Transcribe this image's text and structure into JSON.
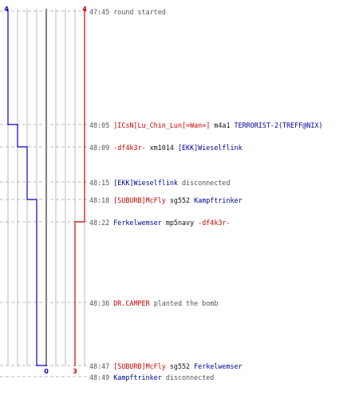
{
  "colors": {
    "team_t": "#cc0000",
    "team_ct": "#0000cc",
    "grid": "#bbbbbb",
    "center": "#555555",
    "dash": "#bbbbbb",
    "text_time": "#555555",
    "text_player_t": "#cc0000",
    "text_player_ct": "#000099"
  },
  "chart_data": {
    "type": "line",
    "series": [
      {
        "team": "ct",
        "start": 4,
        "end": 0,
        "times": [
          "47:45",
          "48:05",
          "48:09",
          "48:18",
          "48:47"
        ],
        "values": [
          4,
          3,
          2,
          1,
          0
        ]
      },
      {
        "team": "t",
        "start": 4,
        "end": 3,
        "times": [
          "47:45",
          "48:22",
          "48:47"
        ],
        "values": [
          4,
          3,
          3
        ]
      }
    ],
    "top_labels": {
      "ct": "4",
      "t": "4"
    },
    "bottom_labels": {
      "ct": "0",
      "t": "3"
    }
  },
  "events": [
    {
      "time": "47:45",
      "parts": [
        {
          "text": "round started",
          "style": "gray"
        }
      ]
    },
    {
      "time": "48:05",
      "parts": [
        {
          "text": "]ICsN[Lu_Chin_Lun[=Wan=]",
          "style": "red"
        },
        {
          "text": " m4a1 ",
          "style": "dark"
        },
        {
          "text": "TERRORIST-2(TREFF@NIX)",
          "style": "blue"
        }
      ]
    },
    {
      "time": "48:09",
      "parts": [
        {
          "text": "-df4k3r-",
          "style": "red"
        },
        {
          "text": " xm1014 ",
          "style": "dark"
        },
        {
          "text": "[EKK]Wieselflink",
          "style": "blue"
        }
      ]
    },
    {
      "time": "48:15",
      "parts": [
        {
          "text": "[EKK]Wieselflink",
          "style": "blue"
        },
        {
          "text": " disconnected",
          "style": "gray"
        }
      ]
    },
    {
      "time": "48:18",
      "parts": [
        {
          "text": "[SUBURB]McFly",
          "style": "red"
        },
        {
          "text": " sg552 ",
          "style": "dark"
        },
        {
          "text": "Kampftrinker",
          "style": "blue"
        }
      ]
    },
    {
      "time": "48:22",
      "parts": [
        {
          "text": "Ferkelwemser",
          "style": "blue"
        },
        {
          "text": " mp5navy ",
          "style": "dark"
        },
        {
          "text": "-df4k3r-",
          "style": "red"
        }
      ]
    },
    {
      "time": "48:36",
      "parts": [
        {
          "text": "DR.CAMPER",
          "style": "red"
        },
        {
          "text": " planted the bomb",
          "style": "gray"
        }
      ]
    },
    {
      "time": "48:47",
      "parts": [
        {
          "text": "[SUBURB]McFly",
          "style": "red"
        },
        {
          "text": " sg552 ",
          "style": "dark"
        },
        {
          "text": "Ferkelwemser",
          "style": "blue"
        }
      ]
    },
    {
      "time": "48:49",
      "parts": [
        {
          "text": "Kampftrinker",
          "style": "blue"
        },
        {
          "text": " disconnected",
          "style": "gray"
        }
      ]
    }
  ]
}
